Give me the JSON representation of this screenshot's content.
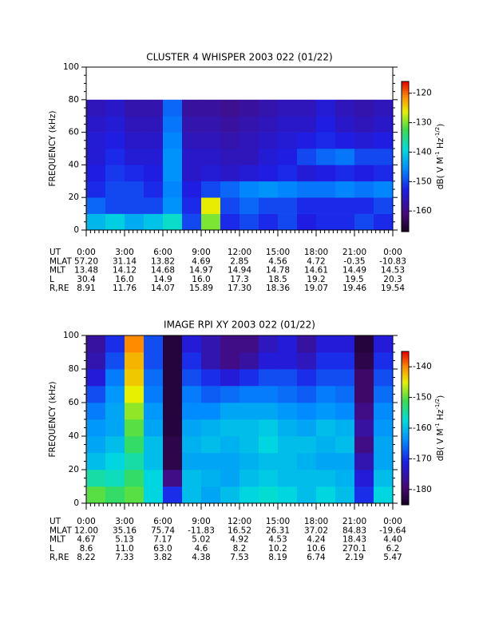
{
  "chart_data": [
    {
      "type": "spectrogram",
      "title": "CLUSTER 4 WHISPER 2003 022 (01/22)",
      "ylabel": "FREQUENCY (kHz)",
      "xlim": [
        0,
        24
      ],
      "xticks": [
        {
          "value": 0,
          "label": "0:00"
        },
        {
          "value": 3,
          "label": "3:00"
        },
        {
          "value": 6,
          "label": "6:00"
        },
        {
          "value": 9,
          "label": "9:00"
        },
        {
          "value": 12,
          "label": "12:00"
        },
        {
          "value": 15,
          "label": "15:00"
        },
        {
          "value": 18,
          "label": "18:00"
        },
        {
          "value": 21,
          "label": "21:00"
        },
        {
          "value": 24,
          "label": "0:00"
        }
      ],
      "ylim": [
        0,
        100
      ],
      "yticks": [
        0,
        20,
        40,
        60,
        80,
        100
      ],
      "zlim": [
        -167,
        -116
      ],
      "zticks": [
        -120,
        -130,
        -140,
        -150,
        -160
      ],
      "zlabel": [
        "dB( V M",
        "-1",
        " Hz",
        "-1/2",
        ")"
      ],
      "z": {
        "x": [
          0,
          1.5,
          3,
          4.5,
          6,
          7.5,
          9,
          10.5,
          12,
          13.5,
          15,
          16.5,
          18,
          19.5,
          21,
          22.5,
          24
        ],
        "y": [
          0,
          10,
          20,
          30,
          40,
          50,
          60,
          70,
          80
        ],
        "values": [
          [
            -142,
            -140,
            -143,
            -141,
            -138,
            -150,
            -130,
            -152,
            -150,
            -152,
            -150,
            -153,
            -152,
            -152,
            -150,
            -152
          ],
          [
            -148,
            -150,
            -150,
            -150,
            -145,
            -152,
            -126,
            -150,
            -148,
            -150,
            -150,
            -152,
            -152,
            -152,
            -152,
            -150
          ],
          [
            -152,
            -150,
            -150,
            -152,
            -146,
            -153,
            -150,
            -148,
            -146,
            -145,
            -146,
            -147,
            -147,
            -146,
            -147,
            -146
          ],
          [
            -153,
            -151,
            -152,
            -153,
            -145,
            -155,
            -154,
            -155,
            -154,
            -153,
            -152,
            -154,
            -153,
            -152,
            -153,
            -152
          ],
          [
            -154,
            -152,
            -154,
            -154,
            -145,
            -155,
            -155,
            -156,
            -156,
            -154,
            -153,
            -150,
            -148,
            -147,
            -150,
            -150
          ],
          [
            -154,
            -153,
            -155,
            -155,
            -146,
            -156,
            -156,
            -157,
            -156,
            -155,
            -154,
            -153,
            -152,
            -153,
            -154,
            -153
          ],
          [
            -155,
            -154,
            -156,
            -156,
            -147,
            -157,
            -157,
            -158,
            -157,
            -156,
            -155,
            -155,
            -153,
            -155,
            -156,
            -155
          ],
          [
            -156,
            -155,
            -157,
            -157,
            -148,
            -158,
            -158,
            -159,
            -158,
            -157,
            -156,
            -156,
            -154,
            -156,
            -157,
            -156
          ]
        ]
      },
      "ephemeris": [
        {
          "name": "MLAT",
          "values": [
            "57.20",
            "31.14",
            "13.82",
            "4.69",
            "2.85",
            "4.56",
            "4.72",
            "-0.35",
            "-10.83"
          ]
        },
        {
          "name": "MLT",
          "values": [
            "13.48",
            "14.12",
            "14.68",
            "14.97",
            "14.94",
            "14.78",
            "14.61",
            "14.49",
            "14.53"
          ]
        },
        {
          "name": "L",
          "values": [
            "30.4",
            "16.0",
            "14.9",
            "16.0",
            "17.3",
            "18.5",
            "19.2",
            "19.5",
            "20.3"
          ]
        },
        {
          "name": "R,RE",
          "values": [
            "8.91",
            "11.76",
            "14.07",
            "15.89",
            "17.30",
            "18.36",
            "19.07",
            "19.46",
            "19.54"
          ]
        }
      ],
      "time_label": "UT"
    },
    {
      "type": "spectrogram",
      "title": "IMAGE RPI XY 2003 022 (01/22)",
      "ylabel": "FREQUENCY (kHz)",
      "xlim": [
        0,
        24
      ],
      "xticks": [
        {
          "value": 0,
          "label": "0:00"
        },
        {
          "value": 3,
          "label": "3:00"
        },
        {
          "value": 6,
          "label": "6:00"
        },
        {
          "value": 9,
          "label": "9:00"
        },
        {
          "value": 12,
          "label": "12:00"
        },
        {
          "value": 15,
          "label": "15:00"
        },
        {
          "value": 18,
          "label": "18:00"
        },
        {
          "value": 21,
          "label": "21:00"
        },
        {
          "value": 24,
          "label": "0:00"
        }
      ],
      "ylim": [
        0,
        100
      ],
      "yticks": [
        0,
        20,
        40,
        60,
        80,
        100
      ],
      "zlim": [
        -185,
        -135
      ],
      "zticks": [
        -140,
        -150,
        -160,
        -170,
        -180
      ],
      "zlabel": [
        "dB( V M",
        "-1",
        " Hz",
        "-1/2",
        ")"
      ],
      "z": {
        "x": [
          0,
          1.5,
          3,
          4.5,
          6,
          7.5,
          9,
          10.5,
          12,
          13.5,
          15,
          16.5,
          18,
          19.5,
          21,
          22.5,
          24
        ],
        "y": [
          0,
          10,
          20,
          30,
          40,
          50,
          60,
          70,
          80,
          90,
          100
        ],
        "values": [
          [
            -150,
            -152,
            -150,
            -158,
            -170,
            -160,
            -162,
            -160,
            -158,
            -157,
            -158,
            -160,
            -158,
            -160,
            -170,
            -158
          ],
          [
            -155,
            -156,
            -152,
            -158,
            -178,
            -160,
            -161,
            -162,
            -160,
            -159,
            -160,
            -160,
            -160,
            -161,
            -172,
            -160
          ],
          [
            -160,
            -158,
            -155,
            -160,
            -182,
            -162,
            -162,
            -162,
            -161,
            -160,
            -160,
            -161,
            -162,
            -162,
            -175,
            -162
          ],
          [
            -162,
            -160,
            -152,
            -160,
            -182,
            -161,
            -160,
            -161,
            -160,
            -158,
            -160,
            -160,
            -161,
            -160,
            -178,
            -162
          ],
          [
            -163,
            -162,
            -150,
            -162,
            -183,
            -162,
            -161,
            -160,
            -160,
            -159,
            -161,
            -162,
            -160,
            -161,
            -176,
            -163
          ],
          [
            -165,
            -162,
            -148,
            -163,
            -183,
            -164,
            -164,
            -162,
            -162,
            -162,
            -163,
            -164,
            -163,
            -164,
            -178,
            -164
          ],
          [
            -168,
            -163,
            -145,
            -165,
            -183,
            -165,
            -167,
            -166,
            -165,
            -165,
            -166,
            -167,
            -165,
            -166,
            -180,
            -166
          ],
          [
            -172,
            -165,
            -143,
            -166,
            -183,
            -168,
            -170,
            -172,
            -170,
            -168,
            -168,
            -170,
            -168,
            -168,
            -180,
            -168
          ],
          [
            -175,
            -168,
            -142,
            -168,
            -183,
            -170,
            -175,
            -178,
            -176,
            -172,
            -172,
            -174,
            -170,
            -170,
            -182,
            -170
          ],
          [
            -176,
            -170,
            -140,
            -168,
            -183,
            -172,
            -175,
            -178,
            -178,
            -174,
            -172,
            -176,
            -172,
            -172,
            -183,
            -172
          ]
        ]
      },
      "ephemeris": [
        {
          "name": "MLAT",
          "values": [
            "12.00",
            "35.16",
            "75.74",
            "-11.83",
            "16.52",
            "26.31",
            "37.02",
            "84.83",
            "-19.64"
          ]
        },
        {
          "name": "MLT",
          "values": [
            "4.67",
            "5.13",
            "7.17",
            "5.02",
            "4.92",
            "4.53",
            "4.24",
            "18.43",
            "4.40"
          ]
        },
        {
          "name": "L",
          "values": [
            "8.6",
            "11.0",
            "63.0",
            "4.6",
            "8.2",
            "10.2",
            "10.6",
            "270.1",
            "6.2"
          ]
        },
        {
          "name": "R,RE",
          "values": [
            "8.22",
            "7.33",
            "3.82",
            "4.38",
            "7.53",
            "8.19",
            "6.74",
            "2.19",
            "5.47"
          ]
        }
      ],
      "time_label": "UT"
    }
  ]
}
